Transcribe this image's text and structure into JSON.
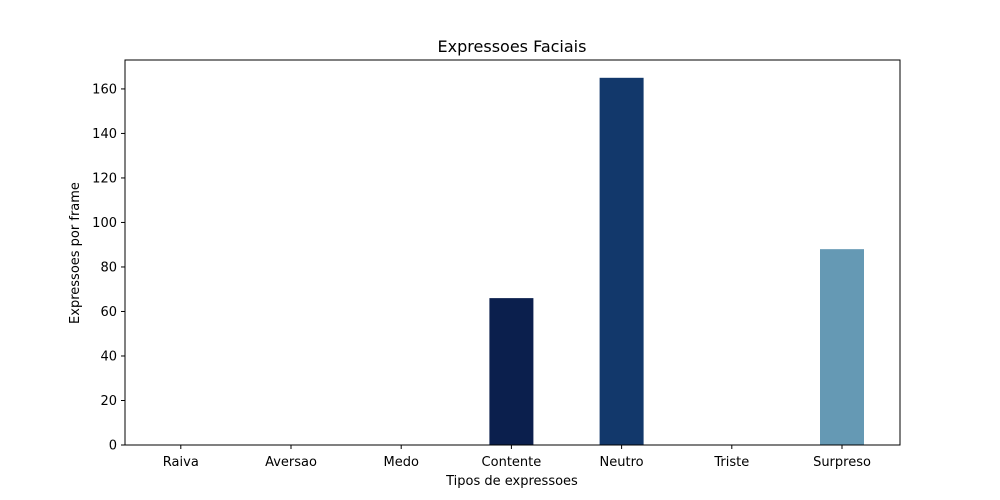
{
  "chart_data": {
    "type": "bar",
    "title": "Expressoes Faciais",
    "xlabel": "Tipos de expressoes",
    "ylabel": "Expressoes por frame",
    "categories": [
      "Raiva",
      "Aversao",
      "Medo",
      "Contente",
      "Neutro",
      "Triste",
      "Surpreso"
    ],
    "values": [
      0,
      0,
      0,
      66,
      165,
      0,
      88
    ],
    "colors": [
      "#0b1f4d",
      "#0b1f4d",
      "#0b1f4d",
      "#0b1f4d",
      "#12386b",
      "#12386b",
      "#6599b4"
    ],
    "ylim": [
      0,
      173
    ],
    "yticks": [
      0,
      20,
      40,
      60,
      80,
      100,
      120,
      140,
      160
    ],
    "grid": false,
    "legend": null
  }
}
